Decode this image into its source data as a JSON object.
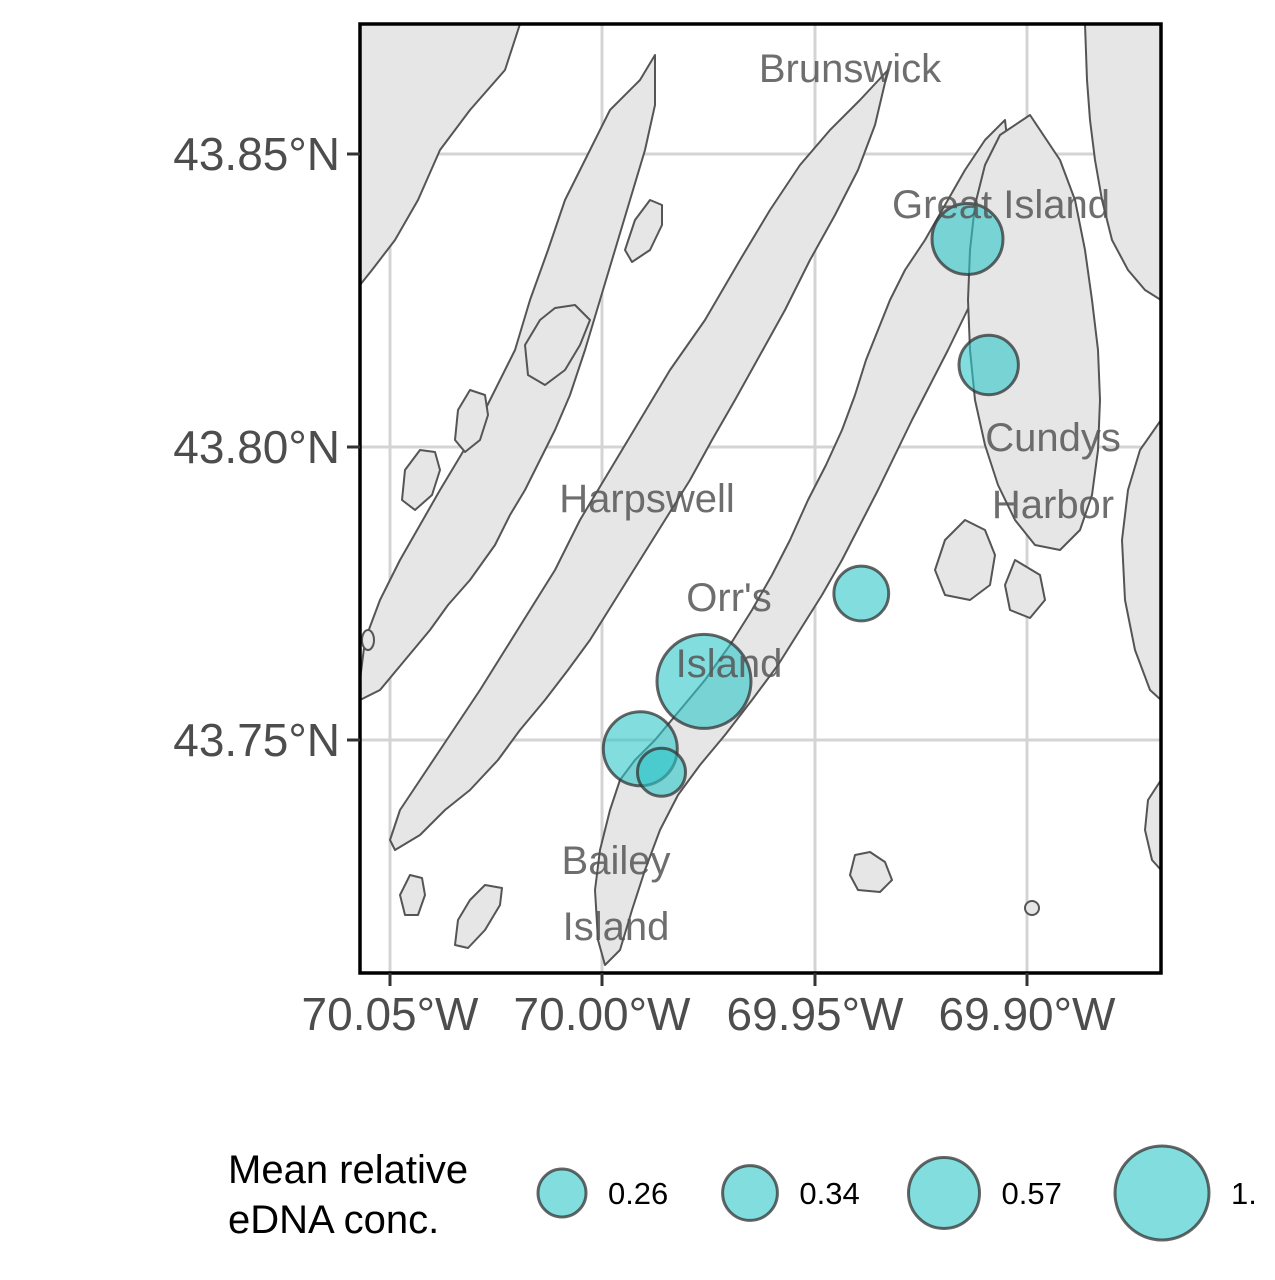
{
  "map": {
    "axes": {
      "x_ticks": [
        "70.05°W",
        "70.00°W",
        "69.95°W",
        "69.90°W"
      ],
      "y_ticks": [
        "43.85°N",
        "43.80°N",
        "43.75°N"
      ]
    },
    "place_labels": [
      {
        "lines": [
          "Brunswick"
        ]
      },
      {
        "lines": [
          "Great Island"
        ]
      },
      {
        "lines": [
          "Cundys",
          "Harbor"
        ]
      },
      {
        "lines": [
          "Harpswell"
        ]
      },
      {
        "lines": [
          "Orr's",
          "Island"
        ]
      },
      {
        "lines": [
          "Bailey",
          "Island"
        ]
      }
    ],
    "sites": [
      {
        "lon": -69.914,
        "lat": 43.8355,
        "value": 0.57
      },
      {
        "lon": -69.909,
        "lat": 43.814,
        "value": 0.4
      },
      {
        "lon": -69.939,
        "lat": 43.775,
        "value": 0.34
      },
      {
        "lon": -69.976,
        "lat": 43.76,
        "value": 1.0
      },
      {
        "lon": -69.991,
        "lat": 43.7485,
        "value": 0.62
      },
      {
        "lon": -69.986,
        "lat": 43.7445,
        "value": 0.26
      }
    ]
  },
  "legend": {
    "title_lines": [
      "Mean relative",
      "eDNA conc."
    ],
    "items": [
      {
        "label": "0.26",
        "value": 0.26
      },
      {
        "label": "0.34",
        "value": 0.34
      },
      {
        "label": "0.57",
        "value": 0.57
      },
      {
        "label": "1.",
        "value": 1.0
      }
    ]
  },
  "colors": {
    "bubble_fill": "#2ec7c9",
    "bubble_stroke": "#333333",
    "land": "#e6e6e6",
    "coast": "#555555",
    "grid": "#d4d4d4",
    "frame": "#000000"
  }
}
